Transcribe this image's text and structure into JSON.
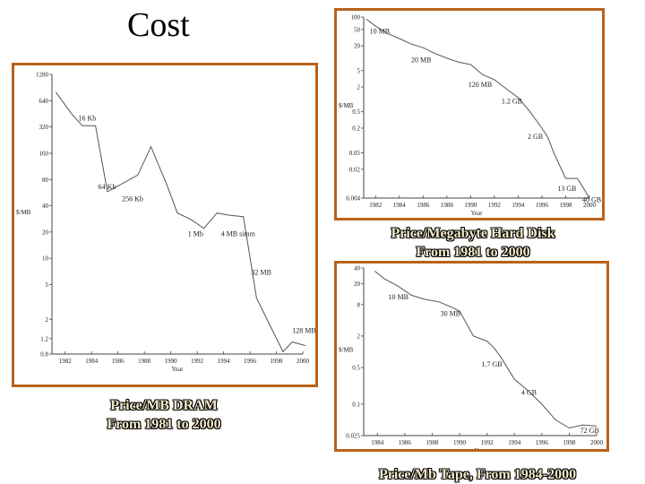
{
  "slide": {
    "title": "Cost",
    "accent_color": "#b8621b"
  },
  "captions": {
    "dram": [
      "Price/MB DRAM",
      "From 1981 to 2000"
    ],
    "disk": [
      "Price/Megabyte Hard Disk",
      "From 1981 to 2000"
    ],
    "tape": [
      "Price/Mb Tape, From 1984-2000"
    ]
  },
  "chart_data": [
    {
      "id": "dram",
      "type": "line",
      "scale": "log",
      "ylabel": "$/MB",
      "xlabel": "Year",
      "xlim": [
        1981,
        2000
      ],
      "ylim": [
        0.8,
        1280
      ],
      "x_ticks": [
        "1982",
        "1984",
        "1986",
        "1988",
        "1990",
        "1992",
        "1994",
        "1996",
        "1998",
        "2000"
      ],
      "y_ticks": [
        {
          "v": 1280,
          "t": "1280"
        },
        {
          "v": 640,
          "t": "640"
        },
        {
          "v": 320,
          "t": "320"
        },
        {
          "v": 160,
          "t": "160"
        },
        {
          "v": 80,
          "t": "80"
        },
        {
          "v": 40,
          "t": "40"
        },
        {
          "v": 20,
          "t": "20"
        },
        {
          "v": 10,
          "t": "10"
        },
        {
          "v": 5,
          "t": "5"
        },
        {
          "v": 2,
          "t": "2"
        },
        {
          "v": 1.2,
          "t": "1.2"
        },
        {
          "v": 0.8,
          "t": "0.8"
        }
      ],
      "points": [
        [
          1981.3,
          800
        ],
        [
          1982.5,
          450
        ],
        [
          1983.3,
          330
        ],
        [
          1984.3,
          330
        ],
        [
          1985.2,
          58
        ],
        [
          1986.2,
          70
        ],
        [
          1987.5,
          90
        ],
        [
          1988.5,
          190
        ],
        [
          1989.7,
          70
        ],
        [
          1990.5,
          33
        ],
        [
          1991.5,
          28
        ],
        [
          1992.5,
          22
        ],
        [
          1993.5,
          33
        ],
        [
          1994.5,
          31
        ],
        [
          1995.5,
          30
        ],
        [
          1996.5,
          3.5
        ],
        [
          1998.5,
          0.85
        ],
        [
          1999.2,
          1.1
        ],
        [
          2000.2,
          1.0
        ]
      ],
      "annotations": [
        {
          "x": 1983.0,
          "y": 380,
          "t": "16 Kb"
        },
        {
          "x": 1984.5,
          "y": 62,
          "t": "64 Kb"
        },
        {
          "x": 1986.3,
          "y": 45,
          "t": "256 Kb"
        },
        {
          "x": 1991.3,
          "y": 18,
          "t": "1 Mb"
        },
        {
          "x": 1993.8,
          "y": 18,
          "t": "4 MB simm"
        },
        {
          "x": 1996.1,
          "y": 6.5,
          "t": "32 MB"
        },
        {
          "x": 1999.2,
          "y": 1.4,
          "t": "128 MB"
        }
      ]
    },
    {
      "id": "disk",
      "type": "line",
      "scale": "log",
      "ylabel": "$/MB",
      "xlabel": "Year",
      "xlim": [
        1981,
        2000
      ],
      "ylim": [
        0.004,
        100
      ],
      "x_ticks": [
        "1982",
        "1984",
        "1986",
        "1988",
        "1990",
        "1992",
        "1994",
        "1996",
        "1998",
        "2000"
      ],
      "y_ticks": [
        {
          "v": 100,
          "t": "100"
        },
        {
          "v": 50,
          "t": "50"
        },
        {
          "v": 20,
          "t": "20"
        },
        {
          "v": 5,
          "t": "5"
        },
        {
          "v": 2,
          "t": "2"
        },
        {
          "v": 0.5,
          "t": "0.5"
        },
        {
          "v": 0.2,
          "t": "0.2"
        },
        {
          "v": 0.05,
          "t": "0.05"
        },
        {
          "v": 0.02,
          "t": "0.02"
        },
        {
          "v": 0.004,
          "t": "0.004"
        }
      ],
      "points": [
        [
          1981.2,
          90
        ],
        [
          1982,
          60
        ],
        [
          1983,
          40
        ],
        [
          1984,
          30
        ],
        [
          1985,
          22
        ],
        [
          1986,
          18
        ],
        [
          1987,
          13
        ],
        [
          1988,
          10
        ],
        [
          1989,
          8
        ],
        [
          1990,
          7
        ],
        [
          1991,
          4
        ],
        [
          1992,
          3
        ],
        [
          1993,
          1.8
        ],
        [
          1994,
          1.1
        ],
        [
          1995,
          0.5
        ],
        [
          1996,
          0.2
        ],
        [
          1996.5,
          0.12
        ],
        [
          1997,
          0.05
        ],
        [
          1998,
          0.012
        ],
        [
          1999,
          0.012
        ],
        [
          2000,
          0.004
        ]
      ],
      "annotations": [
        {
          "x": 1981.5,
          "y": 40,
          "t": "10 MB"
        },
        {
          "x": 1985,
          "y": 8,
          "t": "20 MB"
        },
        {
          "x": 1989.8,
          "y": 2,
          "t": "120 MB"
        },
        {
          "x": 1992.6,
          "y": 0.8,
          "t": "1.2 GB"
        },
        {
          "x": 1994.8,
          "y": 0.11,
          "t": "2 GB"
        },
        {
          "x": 1997.3,
          "y": 0.006,
          "t": "13 GB"
        },
        {
          "x": 1999.4,
          "y": 0.0032,
          "t": "40 GB"
        }
      ]
    },
    {
      "id": "tape",
      "type": "line",
      "scale": "log",
      "ylabel": "$/MB",
      "xlabel": "Year",
      "xlim": [
        1983,
        2000
      ],
      "ylim": [
        0.025,
        40
      ],
      "x_ticks": [
        "1984",
        "1986",
        "1988",
        "1990",
        "1992",
        "1994",
        "1996",
        "1998",
        "2000"
      ],
      "y_ticks": [
        {
          "v": 40,
          "t": "40"
        },
        {
          "v": 20,
          "t": "20"
        },
        {
          "v": 8,
          "t": "8"
        },
        {
          "v": 2,
          "t": "2"
        },
        {
          "v": 0.5,
          "t": "0.5"
        },
        {
          "v": 0.1,
          "t": "0.1"
        },
        {
          "v": 0.025,
          "t": "0.025"
        }
      ],
      "points": [
        [
          1983.8,
          35
        ],
        [
          1984.5,
          25
        ],
        [
          1985.5,
          18
        ],
        [
          1986.5,
          12
        ],
        [
          1987.5,
          10
        ],
        [
          1988.5,
          9
        ],
        [
          1989.5,
          7
        ],
        [
          1990,
          6
        ],
        [
          1991,
          2
        ],
        [
          1992,
          1.6
        ],
        [
          1992.5,
          1.2
        ],
        [
          1993,
          0.8
        ],
        [
          1994,
          0.3
        ],
        [
          1995,
          0.18
        ],
        [
          1996,
          0.1
        ],
        [
          1997,
          0.05
        ],
        [
          1998,
          0.035
        ],
        [
          1999,
          0.04
        ],
        [
          2000,
          0.038
        ]
      ],
      "annotations": [
        {
          "x": 1984.8,
          "y": 10,
          "t": "10 MB"
        },
        {
          "x": 1988.6,
          "y": 4.8,
          "t": "30 MB"
        },
        {
          "x": 1991.6,
          "y": 0.52,
          "t": "1.7 GB"
        },
        {
          "x": 1994.5,
          "y": 0.15,
          "t": "4 GB"
        },
        {
          "x": 1998.8,
          "y": 0.028,
          "t": "72 GB"
        }
      ]
    }
  ]
}
